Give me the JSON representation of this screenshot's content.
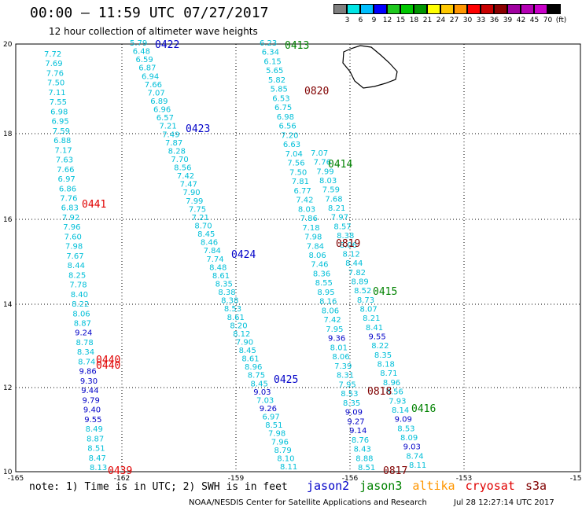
{
  "title": "00:00 – 11:59 UTC 07/27/2017",
  "subtitle": "12 hour collection of altimeter wave heights",
  "legend": {
    "colors": [
      "#7f7f7f",
      "#00e5e5",
      "#00bfff",
      "#0000ff",
      "#1ec81e",
      "#00c800",
      "#009600",
      "#ffff00",
      "#ffc800",
      "#ff9600",
      "#ff0000",
      "#c80000",
      "#8b0000",
      "#a000a0",
      "#b400b4",
      "#c800c8",
      "#000000"
    ],
    "labels": [
      "3",
      "6",
      "9",
      "12",
      "15",
      "18",
      "21",
      "24",
      "27",
      "30",
      "33",
      "36",
      "39",
      "42",
      "45",
      "70",
      "(ft)"
    ]
  },
  "axes": {
    "lat_ticks": [
      "20",
      "18",
      "16",
      "14",
      "12",
      "10"
    ],
    "lon_ticks": [
      "-165",
      "-162",
      "-159",
      "-156",
      "-153",
      "-150"
    ]
  },
  "tracks": [
    {
      "pass": "0439",
      "color": "#e00000",
      "values": [
        "7.72",
        "7.69",
        "7.76",
        "7.50",
        "7.11",
        "7.55",
        "6.98",
        "6.95",
        "7.59",
        "6.88",
        "7.17",
        "7.63",
        "7.66",
        "6.97",
        "6.86",
        "7.76",
        "6.83",
        "7.92",
        "7.96",
        "7.60",
        "7.98",
        "7.67",
        "8.44",
        "8.25",
        "7.78",
        "8.40",
        "8.22",
        "8.06",
        "8.87",
        "9.24",
        "8.78",
        "8.34",
        "8.74",
        "9.86",
        "9.30",
        "9.44",
        "9.79",
        "9.40",
        "9.55",
        "8.49",
        "8.87",
        "8.51",
        "8.47",
        "8.13"
      ]
    },
    {
      "pass": "0422",
      "color": "#0000c8",
      "values": [
        "5.79",
        "6.48",
        "6.59",
        "6.87",
        "6.94",
        "7.66",
        "7.07",
        "6.89",
        "6.96",
        "6.57",
        "7.21",
        "7.49",
        "7.87",
        "8.28",
        "7.70",
        "8.56",
        "7.42",
        "7.47",
        "7.90",
        "7.99",
        "7.75",
        "7.21",
        "8.70",
        "8.45",
        "8.46",
        "7.84",
        "7.74",
        "8.48",
        "8.61",
        "8.35",
        "8.38",
        "8.38",
        "8.53",
        "8.61",
        "8.20",
        "8.12",
        "7.90",
        "8.45",
        "8.61",
        "8.96",
        "8.75",
        "8.45",
        "9.03",
        "7.03",
        "9.26",
        "6.97",
        "8.51",
        "7.98",
        "7.96",
        "8.79",
        "8.10",
        "8.11"
      ]
    },
    {
      "pass": "0413",
      "color": "#008200",
      "values": [
        "6.23",
        "6.34",
        "6.15",
        "5.65",
        "5.82",
        "5.85",
        "6.53",
        "6.75",
        "6.98",
        "6.56",
        "7.20",
        "6.63",
        "7.04",
        "7.56",
        "7.50",
        "7.81",
        "6.77",
        "7.42",
        "8.03",
        "7.86",
        "7.18",
        "7.98",
        "7.84",
        "8.06",
        "7.46",
        "8.36",
        "8.55",
        "8.95",
        "8.16",
        "8.06",
        "7.42",
        "7.95",
        "9.36",
        "8.01",
        "8.06",
        "7.39",
        "8.31",
        "7.95",
        "8.53",
        "8.35",
        "9.09",
        "9.27",
        "9.14",
        "8.76",
        "8.43",
        "8.88",
        "8.51"
      ]
    },
    {
      "pass": "0414",
      "color": "#008200",
      "values": [
        "7.07",
        "7.76",
        "7.99",
        "8.03",
        "7.59",
        "7.68",
        "8.21",
        "7.97",
        "8.57",
        "8.38",
        "8.06",
        "8.12",
        "8.44",
        "7.82",
        "8.89",
        "8.52",
        "8.73",
        "8.07",
        "8.21",
        "8.41",
        "9.55",
        "8.22",
        "8.35",
        "8.18",
        "8.71",
        "8.96",
        "8.56",
        "7.93",
        "8.14",
        "9.09",
        "8.53",
        "8.09",
        "9.03",
        "8.74",
        "8.11"
      ]
    }
  ],
  "pass_labels": [
    {
      "text": "0422",
      "color": "#0000c8"
    },
    {
      "text": "0413",
      "color": "#008200"
    },
    {
      "text": "0820",
      "color": "#800000"
    },
    {
      "text": "0423",
      "color": "#0000c8"
    },
    {
      "text": "0414",
      "color": "#008200"
    },
    {
      "text": "0441",
      "color": "#e00000"
    },
    {
      "text": "0819",
      "color": "#800000"
    },
    {
      "text": "0424",
      "color": "#0000c8"
    },
    {
      "text": "0415",
      "color": "#008200"
    },
    {
      "text": "0440",
      "color": "#e00000"
    },
    {
      "text": "0440",
      "color": "#e00000"
    },
    {
      "text": "0425",
      "color": "#0000c8"
    },
    {
      "text": "0818",
      "color": "#800000"
    },
    {
      "text": "0416",
      "color": "#008200"
    },
    {
      "text": "0439",
      "color": "#e00000"
    },
    {
      "text": "0817",
      "color": "#800000"
    }
  ],
  "footer": {
    "note": "note: 1) Time is in UTC; 2) SWH is in feet",
    "satellites": [
      {
        "name": "jason2",
        "color": "#0000c8"
      },
      {
        "name": "jason3",
        "color": "#008200"
      },
      {
        "name": "altika",
        "color": "#ff9600"
      },
      {
        "name": "cryosat",
        "color": "#e00000"
      },
      {
        "name": "s3a",
        "color": "#800000"
      }
    ],
    "credit": "NOAA/NESDIS Center for Satellite Applications and Research",
    "timestamp": "Jul 28 12:27:14 UTC 2017"
  }
}
